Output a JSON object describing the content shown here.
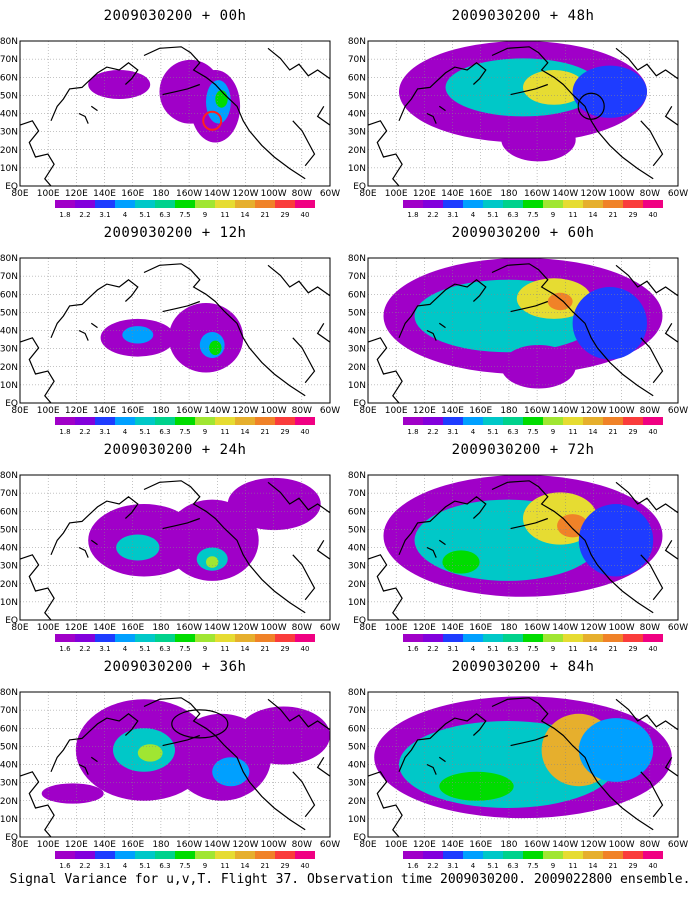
{
  "caption": "Signal Variance for u,v,T. Flight 37. Observation time 2009030200. 2009022800 ensemble.",
  "axes": {
    "x_ticks": [
      "80E",
      "100E",
      "120E",
      "140E",
      "160E",
      "180",
      "160W",
      "140W",
      "120W",
      "100W",
      "80W",
      "60W"
    ],
    "y_ticks": [
      "80N",
      "70N",
      "60N",
      "50N",
      "40N",
      "30N",
      "20N",
      "10N",
      "EQ"
    ]
  },
  "colorbar": {
    "levels": [
      "1.8",
      "2.2",
      "3.1",
      "4",
      "5.1",
      "6.3",
      "7.5",
      "9",
      "11",
      "14",
      "21",
      "29",
      "40"
    ],
    "levels_alt": [
      "1.6",
      "2.2",
      "3.1",
      "4",
      "5.1",
      "6.3",
      "7.5",
      "9",
      "11",
      "14",
      "21",
      "29",
      "40"
    ],
    "colors": [
      "#a000c8",
      "#8200dc",
      "#1e3cff",
      "#00a0ff",
      "#00c8c8",
      "#00d28c",
      "#00dc00",
      "#a0e632",
      "#e6dc32",
      "#e6af2d",
      "#f08228",
      "#fa3c3c",
      "#f00082"
    ]
  },
  "chart_data": [
    {
      "type": "heatmap",
      "title": "2009030200 + 00h",
      "lead_hours": 0,
      "annotation": "red-circle"
    },
    {
      "type": "heatmap",
      "title": "2009030200 + 12h",
      "lead_hours": 12
    },
    {
      "type": "heatmap",
      "title": "2009030200 + 24h",
      "lead_hours": 24
    },
    {
      "type": "heatmap",
      "title": "2009030200 + 36h",
      "lead_hours": 36,
      "annotation": "black-ellipse"
    },
    {
      "type": "heatmap",
      "title": "2009030200 + 48h",
      "lead_hours": 48,
      "annotation": "black-circle"
    },
    {
      "type": "heatmap",
      "title": "2009030200 + 60h",
      "lead_hours": 60
    },
    {
      "type": "heatmap",
      "title": "2009030200 + 72h",
      "lead_hours": 72
    },
    {
      "type": "heatmap",
      "title": "2009030200 + 84h",
      "lead_hours": 84
    }
  ]
}
